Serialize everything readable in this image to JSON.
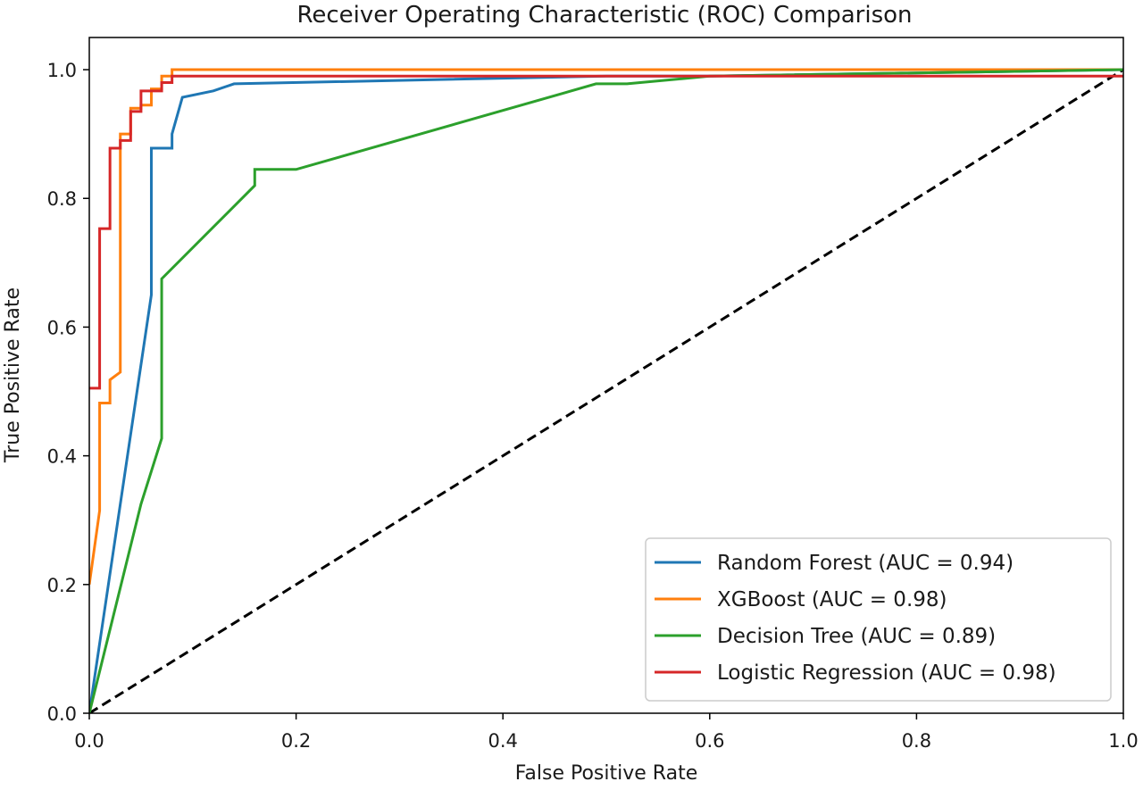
{
  "chart_data": {
    "type": "line",
    "title": "Receiver Operating Characteristic (ROC) Comparison",
    "xlabel": "False Positive Rate",
    "ylabel": "True Positive Rate",
    "xlim": [
      0.0,
      1.0
    ],
    "ylim": [
      0.0,
      1.05
    ],
    "x_ticks": [
      0.0,
      0.2,
      0.4,
      0.6,
      0.8,
      1.0
    ],
    "y_ticks": [
      0.0,
      0.2,
      0.4,
      0.6,
      0.8,
      1.0
    ],
    "x_tick_labels": [
      "0.0",
      "0.2",
      "0.4",
      "0.6",
      "0.8",
      "1.0"
    ],
    "y_tick_labels": [
      "0.0",
      "0.2",
      "0.4",
      "0.6",
      "0.8",
      "1.0"
    ],
    "grid": false,
    "legend_position": "lower-right",
    "series": [
      {
        "name": "Random Forest (AUC = 0.94)",
        "color": "#1f77b4",
        "x": [
          0.0,
          0.06,
          0.06,
          0.08,
          0.08,
          0.09,
          0.09,
          0.12,
          0.14,
          0.5,
          0.6,
          1.0
        ],
        "y": [
          0.0,
          0.65,
          0.878,
          0.878,
          0.9,
          0.957,
          0.957,
          0.967,
          0.978,
          0.99,
          0.99,
          1.0
        ]
      },
      {
        "name": "XGBoost (AUC = 0.98)",
        "color": "#ff7f0e",
        "x": [
          0.0,
          0.0,
          0.01,
          0.01,
          0.02,
          0.02,
          0.03,
          0.03,
          0.03,
          0.04,
          0.04,
          0.05,
          0.05,
          0.06,
          0.06,
          0.07,
          0.07,
          0.08,
          0.08,
          1.0
        ],
        "y": [
          0.2,
          0.2,
          0.315,
          0.482,
          0.482,
          0.518,
          0.53,
          0.9,
          0.9,
          0.9,
          0.94,
          0.94,
          0.945,
          0.945,
          0.97,
          0.97,
          0.99,
          0.99,
          1.0,
          1.0
        ]
      },
      {
        "name": "Decision Tree (AUC = 0.89)",
        "color": "#2ca02c",
        "x": [
          0.0,
          0.05,
          0.07,
          0.07,
          0.16,
          0.16,
          0.2,
          0.49,
          0.52,
          0.6,
          1.0
        ],
        "y": [
          0.0,
          0.325,
          0.427,
          0.675,
          0.82,
          0.845,
          0.845,
          0.978,
          0.978,
          0.99,
          1.0
        ]
      },
      {
        "name": "Logistic Regression (AUC = 0.98)",
        "color": "#d62728",
        "x": [
          0.0,
          0.01,
          0.01,
          0.02,
          0.02,
          0.03,
          0.03,
          0.04,
          0.04,
          0.05,
          0.05,
          0.06,
          0.06,
          0.07,
          0.07,
          0.08,
          0.08,
          1.0
        ],
        "y": [
          0.505,
          0.505,
          0.753,
          0.753,
          0.878,
          0.878,
          0.89,
          0.89,
          0.935,
          0.935,
          0.967,
          0.967,
          0.967,
          0.967,
          0.98,
          0.98,
          0.99,
          0.99
        ]
      }
    ],
    "reference_line": {
      "x": [
        0.0,
        1.0
      ],
      "y": [
        0.0,
        1.0
      ],
      "color": "#000000",
      "style": "dashed"
    }
  }
}
